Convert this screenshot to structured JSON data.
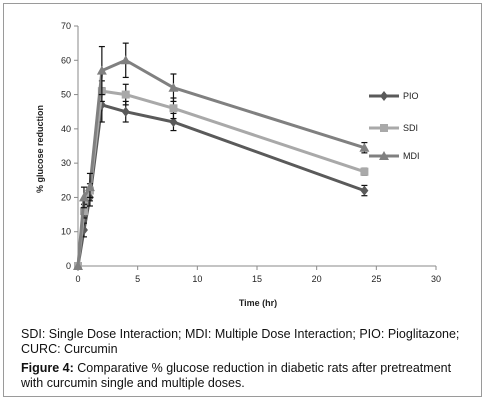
{
  "chart_data": {
    "type": "line",
    "xlabel": "Time (hr)",
    "ylabel": "% glucose reduction",
    "xlim": [
      0,
      30
    ],
    "ylim": [
      0,
      70
    ],
    "x_ticks": [
      "0",
      "5",
      "10",
      "15",
      "20",
      "25",
      "30"
    ],
    "y_ticks": [
      "0",
      "10",
      "20",
      "30",
      "40",
      "50",
      "60",
      "70"
    ],
    "grid": false,
    "legend_position": "right",
    "series": [
      {
        "name": "PIO",
        "color": "#5a5a5a",
        "marker": "diamond",
        "x": [
          0,
          0.5,
          1,
          2,
          4,
          8,
          24
        ],
        "y": [
          0,
          10.5,
          20,
          47,
          45,
          42,
          22
        ],
        "err": [
          0,
          2,
          2.5,
          5,
          3,
          2.5,
          1.5
        ]
      },
      {
        "name": "SDI",
        "color": "#a9a9a9",
        "marker": "square",
        "x": [
          0,
          0.5,
          1,
          2,
          4,
          8,
          24
        ],
        "y": [
          0,
          16,
          22,
          51,
          50,
          46,
          27.5
        ],
        "err": [
          0,
          2,
          2,
          3,
          3,
          3,
          1
        ]
      },
      {
        "name": "MDI",
        "color": "#808080",
        "marker": "triangle",
        "x": [
          0,
          0.5,
          1,
          2,
          4,
          8,
          24
        ],
        "y": [
          0,
          20,
          23,
          57,
          60,
          52,
          34.5
        ],
        "err": [
          0,
          3,
          4,
          7,
          5,
          4,
          1.5
        ]
      }
    ]
  },
  "abbreviations": "SDI: Single Dose Interaction; MDI: Multiple Dose Interaction; PIO: Pioglitazone; CURC: Curcumin",
  "caption": {
    "label": "Figure 4:",
    "text": " Comparative % glucose reduction in diabetic rats after pretreatment with curcumin single and multiple doses."
  }
}
